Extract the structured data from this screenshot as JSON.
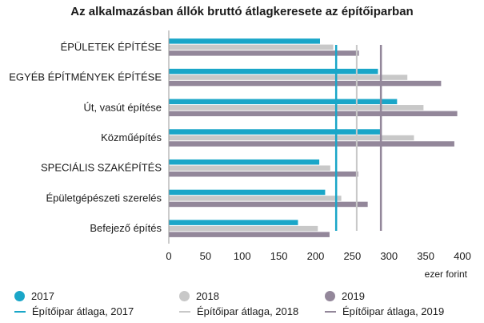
{
  "chart_data": {
    "type": "bar",
    "orientation": "horizontal",
    "title": "Az alkalmazásban állók bruttó átlagkeresete az építőiparban",
    "xlabel": "ezer forint",
    "xlim": [
      0,
      400
    ],
    "xticks": [
      "0",
      "50",
      "100",
      "150",
      "200",
      "250",
      "300",
      "350",
      "400"
    ],
    "categories": [
      "ÉPÜLETEK ÉPÍTÉSE",
      "EGYÉB ÉPÍTMÉNYEK ÉPÍTÉSE",
      "Út, vasút építése",
      "Közműépítés",
      "SPECIÁLIS SZAKÉPÍTÉS",
      "Épületgépészeti szerelés",
      "Befejező építés"
    ],
    "series": [
      {
        "name": "2017",
        "color": "#1aa6c8",
        "values": [
          206,
          285,
          311,
          288,
          205,
          213,
          176
        ]
      },
      {
        "name": "2018",
        "color": "#c8c8c8",
        "values": [
          224,
          325,
          347,
          334,
          220,
          235,
          203
        ]
      },
      {
        "name": "2019",
        "color": "#93879a",
        "values": [
          259,
          371,
          393,
          389,
          258,
          271,
          219
        ]
      }
    ],
    "averages": [
      {
        "name": "Építőipar átlaga, 2017",
        "color": "#1aa6c8",
        "value": 228
      },
      {
        "name": "Építőipar átlaga, 2018",
        "color": "#c8c8c8",
        "value": 256
      },
      {
        "name": "Építőipar átlaga, 2019",
        "color": "#93879a",
        "value": 289
      }
    ],
    "legend_position": "bottom"
  }
}
